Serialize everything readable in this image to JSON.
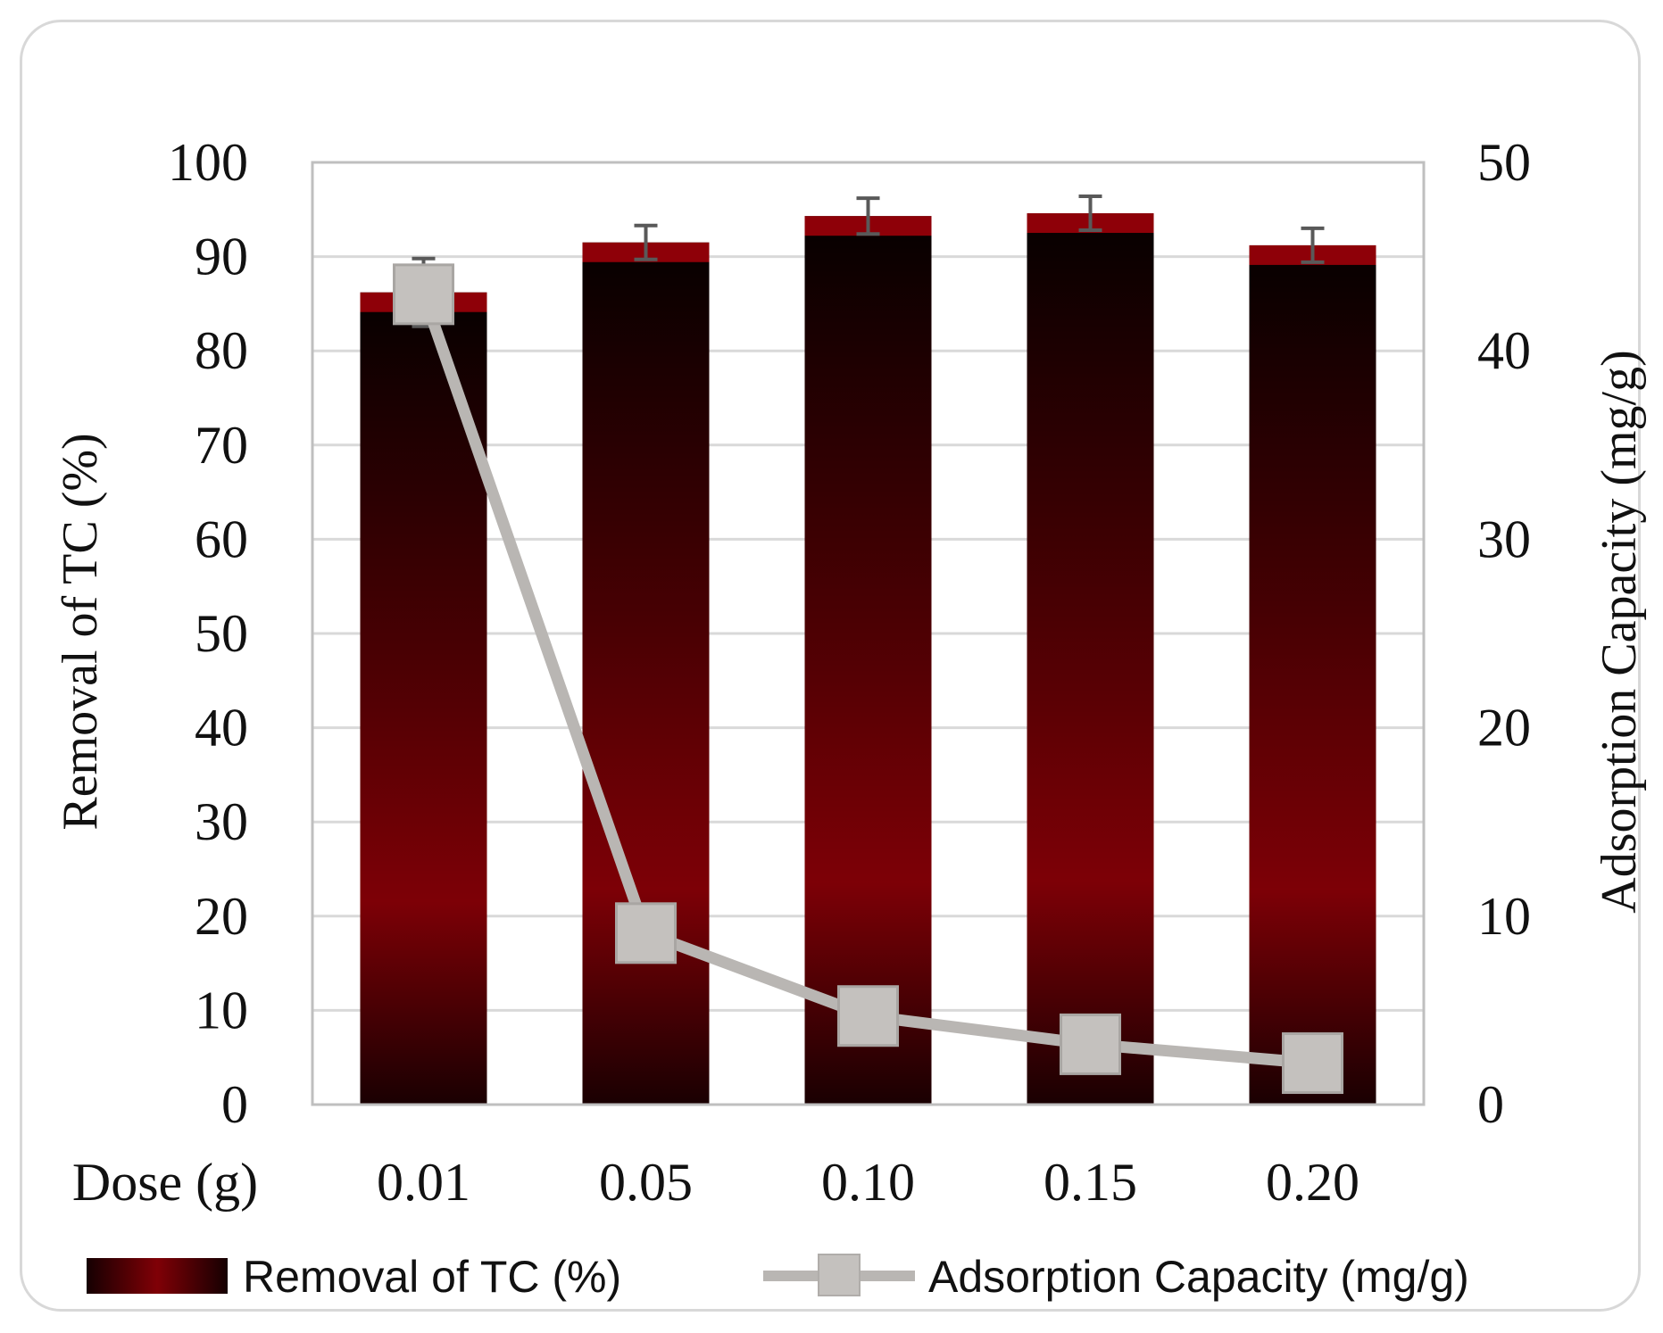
{
  "chart_data": {
    "type": "bar+line",
    "x_label": "Dose (g)",
    "categories": [
      "0.01",
      "0.05",
      "0.10",
      "0.15",
      "0.20"
    ],
    "series": [
      {
        "name": "Removal of TC (%)",
        "type": "bar",
        "axis": "left",
        "values": [
          86.2,
          91.5,
          94.3,
          94.6,
          91.2
        ],
        "error": [
          3.6,
          1.8,
          1.9,
          1.8,
          1.8
        ]
      },
      {
        "name": "Adsorption Capacity (mg/g)",
        "type": "line",
        "axis": "right",
        "values": [
          43.0,
          9.1,
          4.7,
          3.2,
          2.2
        ]
      }
    ],
    "y_left": {
      "label": "Removal of TC (%)",
      "min": 0,
      "max": 100,
      "ticks": [
        "0",
        "10",
        "20",
        "30",
        "40",
        "50",
        "60",
        "70",
        "80",
        "90",
        "100"
      ]
    },
    "y_right": {
      "label": "Adsorption Capacity (mg/g)",
      "min": 0,
      "max": 50,
      "ticks": [
        "0",
        "10",
        "20",
        "30",
        "40",
        "50"
      ]
    },
    "grid": true,
    "legend": {
      "position": "bottom"
    }
  },
  "colors": {
    "bar_dark": "#1a0003",
    "bar_mid": "#7a0005",
    "bar_cap": "#8e0008",
    "line": "#b9b6b3",
    "marker": "#c4c1be",
    "grid": "#d9d9d9",
    "plot_border": "#bfbfbf"
  }
}
